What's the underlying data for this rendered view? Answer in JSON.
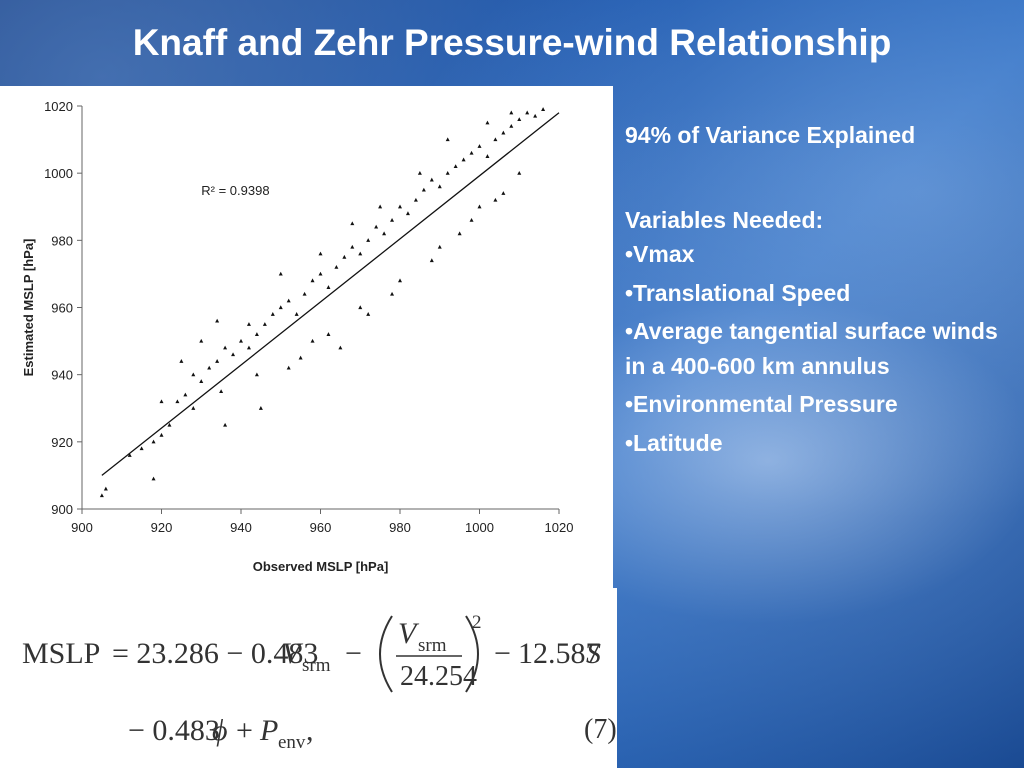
{
  "title": "Knaff and Zehr Pressure-wind Relationship",
  "chart_data": {
    "type": "scatter",
    "title": "",
    "xlabel": "Observed MSLP [hPa]",
    "ylabel": "Estimated MSLP [hPa]",
    "xlim": [
      900,
      1020
    ],
    "ylim": [
      900,
      1020
    ],
    "xticks": [
      900,
      920,
      940,
      960,
      980,
      1000,
      1020
    ],
    "yticks": [
      900,
      920,
      940,
      960,
      980,
      1000,
      1020
    ],
    "annotation": "R² = 0.9398",
    "fit_line": {
      "x": [
        905,
        1020
      ],
      "y": [
        910,
        1018
      ]
    },
    "grid": false,
    "legend": "none",
    "point_color": "#111111",
    "sample_points": {
      "x": [
        905,
        906,
        912,
        915,
        918,
        920,
        922,
        924,
        926,
        928,
        930,
        932,
        934,
        936,
        938,
        940,
        942,
        944,
        946,
        948,
        950,
        952,
        954,
        956,
        958,
        960,
        962,
        964,
        966,
        968,
        970,
        972,
        974,
        976,
        978,
        980,
        982,
        984,
        986,
        988,
        990,
        992,
        994,
        996,
        998,
        1000,
        1002,
        1004,
        1006,
        1008,
        1010,
        1012,
        1014,
        1016,
        918,
        925,
        930,
        935,
        945,
        952,
        958,
        965,
        972,
        980,
        988,
        995,
        1000,
        1006,
        1010,
        920,
        928,
        934,
        942,
        950,
        960,
        968,
        975,
        985,
        992,
        1002,
        1008,
        936,
        944,
        955,
        962,
        970,
        978,
        990,
        998,
        1004
      ],
      "y": [
        904,
        906,
        916,
        918,
        920,
        922,
        925,
        932,
        934,
        930,
        938,
        942,
        944,
        948,
        946,
        950,
        948,
        952,
        955,
        958,
        960,
        962,
        958,
        964,
        968,
        970,
        966,
        972,
        975,
        978,
        976,
        980,
        984,
        982,
        986,
        990,
        988,
        992,
        995,
        998,
        996,
        1000,
        1002,
        1004,
        1006,
        1008,
        1005,
        1010,
        1012,
        1014,
        1016,
        1018,
        1017,
        1019,
        909,
        944,
        950,
        935,
        930,
        942,
        950,
        948,
        958,
        968,
        974,
        982,
        990,
        994,
        1000,
        932,
        940,
        956,
        955,
        970,
        976,
        985,
        990,
        1000,
        1010,
        1015,
        1018,
        925,
        940,
        945,
        952,
        960,
        964,
        978,
        986,
        992
      ]
    }
  },
  "equation": {
    "lhs": "MSLP",
    "line1_terms": [
      "= 23.286 − 0.483",
      "V",
      "srm",
      "−",
      "12.587",
      "S"
    ],
    "fraction_num": "V",
    "fraction_num_sub": "srm",
    "fraction_den": "24.254",
    "exponent": "2",
    "line2_prefix": "− 0.483",
    "phi": "ϕ",
    "line2_mid": "+",
    "p": "P",
    "p_sub": "env",
    "line2_suffix": ",",
    "eq_number": "(7)"
  },
  "right_panel": {
    "variance": "94% of Variance Explained",
    "variables_heading": "Variables Needed:",
    "bullets": [
      "•Vmax",
      "•Translational Speed",
      "•Average tangential surface winds in a 400-600 km annulus",
      "•Environmental Pressure",
      "•Latitude"
    ]
  }
}
